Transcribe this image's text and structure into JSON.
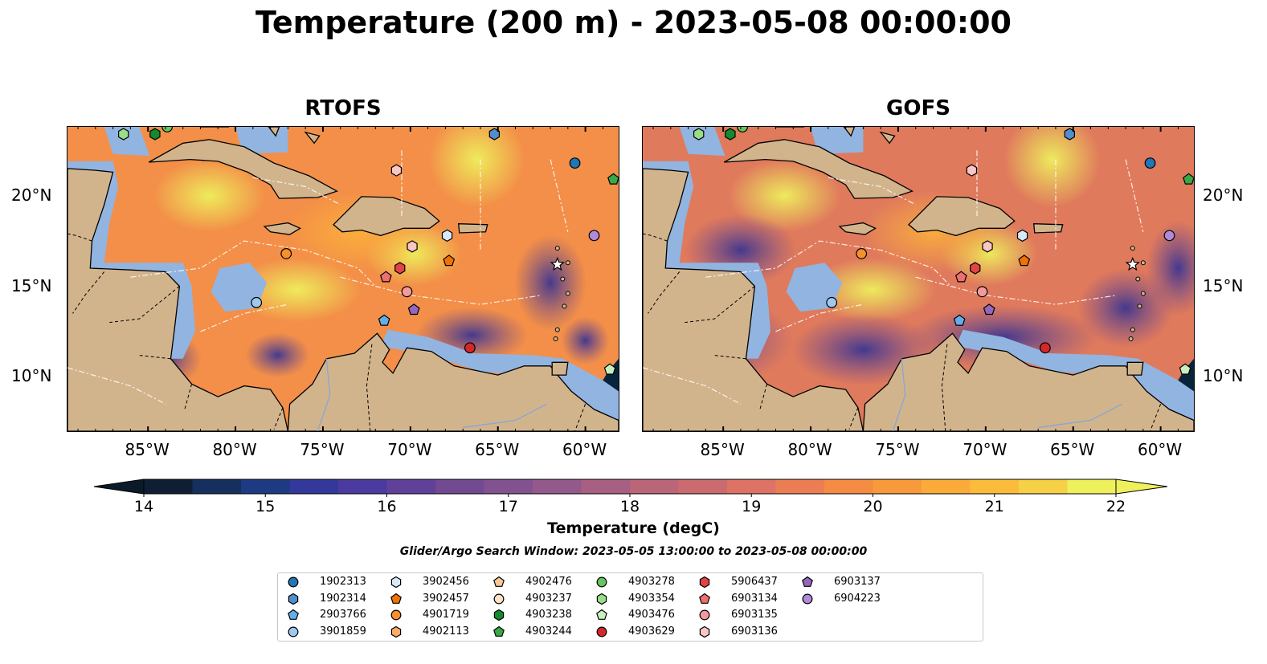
{
  "title": "Temperature (200 m) - 2023-05-08 00:00:00",
  "panels": [
    {
      "id": "rtofs",
      "title": "RTOFS"
    },
    {
      "id": "gofs",
      "title": "GOFS"
    }
  ],
  "axes": {
    "lon_labels": [
      "85°W",
      "80°W",
      "75°W",
      "70°W",
      "65°W",
      "60°W"
    ],
    "lon_values": [
      -85,
      -80,
      -75,
      -70,
      -65,
      -60
    ],
    "lat_labels": [
      "20°N",
      "15°N",
      "10°N"
    ],
    "lat_values": [
      20,
      15,
      10
    ],
    "lon_range": [
      -89.6,
      -58.1
    ],
    "lat_range": [
      7.0,
      23.8
    ]
  },
  "colorbar": {
    "label": "Temperature (degC)",
    "ticks": [
      "14",
      "15",
      "16",
      "17",
      "18",
      "19",
      "20",
      "21",
      "22"
    ],
    "tick_values": [
      14,
      15,
      16,
      17,
      18,
      19,
      20,
      21,
      22
    ],
    "range": [
      14,
      22
    ],
    "extend": "both",
    "colors": [
      "#0f1f33",
      "#15305e",
      "#1e3a82",
      "#33399a",
      "#4b3a9f",
      "#5f4199",
      "#714a92",
      "#825290",
      "#94598b",
      "#a75f82",
      "#bb6579",
      "#cc6b6f",
      "#de7365",
      "#ec7e53",
      "#f48c44",
      "#f89a3b",
      "#fbab3a",
      "#fbbc3c",
      "#f6d146",
      "#eef05c"
    ],
    "under_color": "#0a1a28",
    "over_color": "#eef05c"
  },
  "map_colors": {
    "land": "#d2b48c",
    "shelf": "#92b4e0",
    "deep_cold": "#07243a"
  },
  "search_window": "Glider/Argo Search Window: 2023-05-05 13:00:00 to 2023-05-08 00:00:00",
  "legend": [
    {
      "id": "1902313",
      "marker": "circle",
      "color": "#1f77b4"
    },
    {
      "id": "1902314",
      "marker": "hexagon",
      "color": "#4f8fcc"
    },
    {
      "id": "2903766",
      "marker": "pentagon",
      "color": "#63aee8"
    },
    {
      "id": "3901859",
      "marker": "circle",
      "color": "#a0c8ef"
    },
    {
      "id": "3902456",
      "marker": "hexagon",
      "color": "#d5e9fa"
    },
    {
      "id": "3902457",
      "marker": "pentagon",
      "color": "#f27200"
    },
    {
      "id": "4901719",
      "marker": "circle",
      "color": "#f98f2a"
    },
    {
      "id": "4902113",
      "marker": "hexagon",
      "color": "#fbac67"
    },
    {
      "id": "4902476",
      "marker": "pentagon",
      "color": "#fcc896"
    },
    {
      "id": "4903237",
      "marker": "circle",
      "color": "#fde2c6"
    },
    {
      "id": "4903238",
      "marker": "hexagon",
      "color": "#138a2c"
    },
    {
      "id": "4903244",
      "marker": "pentagon",
      "color": "#3aa847"
    },
    {
      "id": "4903278",
      "marker": "circle",
      "color": "#66c55f"
    },
    {
      "id": "4903354",
      "marker": "hexagon",
      "color": "#98dd8a"
    },
    {
      "id": "4903476",
      "marker": "pentagon",
      "color": "#c9efbf"
    },
    {
      "id": "4903629",
      "marker": "circle",
      "color": "#d62728"
    },
    {
      "id": "5906437",
      "marker": "hexagon",
      "color": "#e04444"
    },
    {
      "id": "6903134",
      "marker": "pentagon",
      "color": "#ee6f6f"
    },
    {
      "id": "6903135",
      "marker": "circle",
      "color": "#f49a9a"
    },
    {
      "id": "6903136",
      "marker": "hexagon",
      "color": "#f9c6c6"
    },
    {
      "id": "6903137",
      "marker": "pentagon",
      "color": "#9467bd"
    },
    {
      "id": "6904223",
      "marker": "circle",
      "color": "#b08ad6"
    }
  ],
  "floats": [
    {
      "id": "4903354",
      "lon": -86.4,
      "lat": 23.4
    },
    {
      "id": "4903238",
      "lon": -84.6,
      "lat": 23.4
    },
    {
      "id": "4903278",
      "lon": -83.9,
      "lat": 23.8
    },
    {
      "id": "1902314",
      "lon": -65.2,
      "lat": 23.4
    },
    {
      "id": "1902313",
      "lon": -60.6,
      "lat": 21.8
    },
    {
      "id": "4903244",
      "lon": -58.4,
      "lat": 20.9
    },
    {
      "id": "6903136",
      "lon": -70.8,
      "lat": 21.4
    },
    {
      "id": "6904223",
      "lon": -59.5,
      "lat": 17.8
    },
    {
      "id": "3902456",
      "lon": -67.9,
      "lat": 17.8
    },
    {
      "id": "6903136",
      "lon": -69.9,
      "lat": 17.2
    },
    {
      "id": "4901719",
      "lon": -77.1,
      "lat": 16.8
    },
    {
      "id": "3902457",
      "lon": -67.8,
      "lat": 16.4
    },
    {
      "id": "5906437",
      "lon": -70.6,
      "lat": 16.0
    },
    {
      "id": "6903134",
      "lon": -71.4,
      "lat": 15.5
    },
    {
      "id": "6903135",
      "lon": -70.2,
      "lat": 14.7
    },
    {
      "id": "3901859",
      "lon": -78.8,
      "lat": 14.1
    },
    {
      "id": "6903137",
      "lon": -69.8,
      "lat": 13.7
    },
    {
      "id": "2903766",
      "lon": -71.5,
      "lat": 13.1
    },
    {
      "id": "4903629",
      "lon": -66.6,
      "lat": 11.6
    },
    {
      "id": "4903476",
      "lon": -58.6,
      "lat": 10.4
    }
  ]
}
